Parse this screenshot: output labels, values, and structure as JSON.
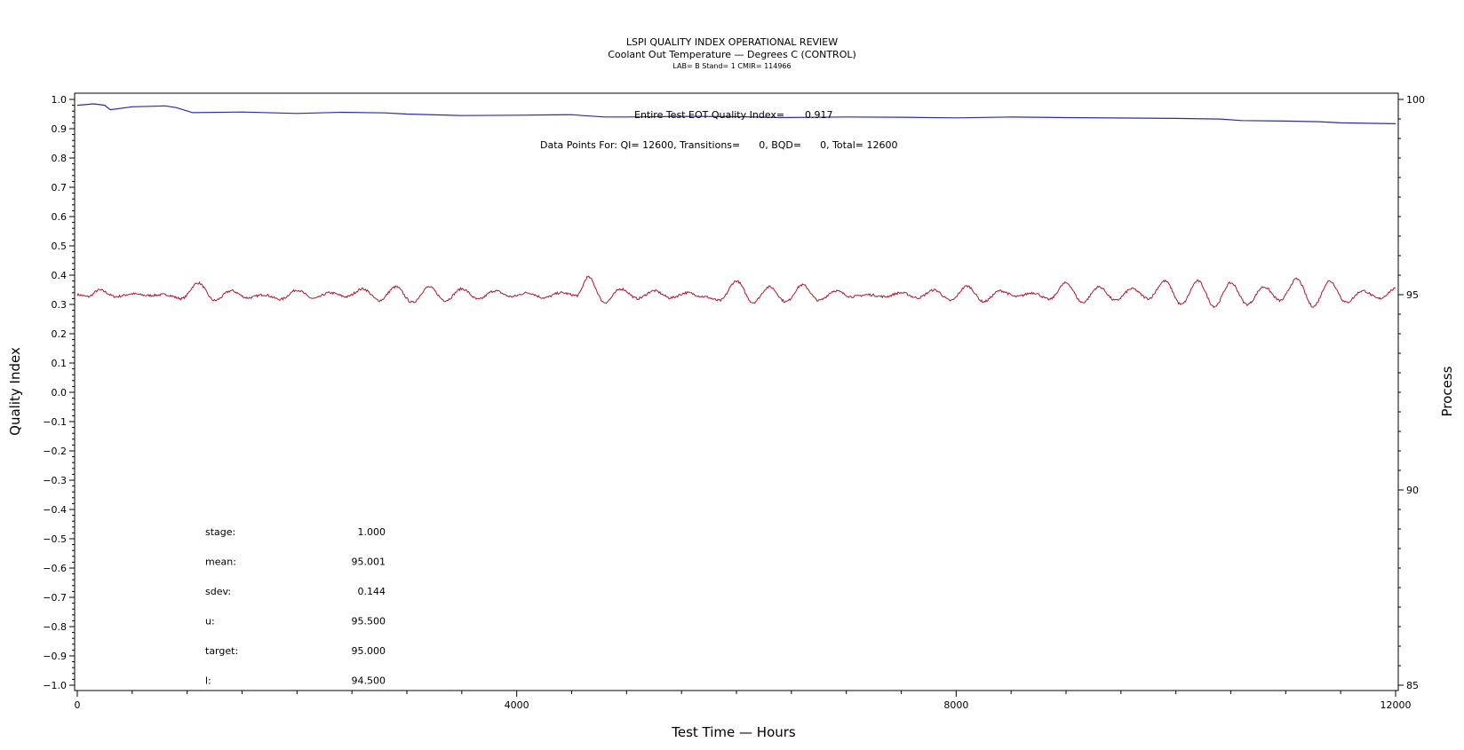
{
  "header": {
    "title": "LSPI QUALITY INDEX OPERATIONAL REVIEW",
    "subtitle": "Coolant Out Temperature — Degrees C (CONTROL)",
    "lab_line": "LAB= B Stand= 1 CMIR= 114966"
  },
  "annotations": {
    "eot_label": "Entire Test EOT Quality Index=",
    "eot_value": "0.917",
    "data_points": "Data Points For: QI= 12600, Transitions=      0, BQD=      0, Total= 12600"
  },
  "stats": [
    {
      "label": "stage:",
      "value": "1.000"
    },
    {
      "label": "mean:",
      "value": "95.001"
    },
    {
      "label": "sdev:",
      "value": "0.144"
    },
    {
      "label": "u:",
      "value": "95.500"
    },
    {
      "label": "target:",
      "value": "95.000"
    },
    {
      "label": "l:",
      "value": "94.500"
    }
  ],
  "colors": {
    "quality_index": "#2b2bb0",
    "process": "#b0152d",
    "axis": "#000000"
  },
  "chart_data": {
    "type": "line",
    "xlabel": "Test Time — Hours",
    "ylabel_left": "Quality Index",
    "ylabel_right": "Process",
    "xlim": [
      0,
      12000
    ],
    "ylim_left": [
      -1.0,
      1.0
    ],
    "ylim_right": [
      85,
      100
    ],
    "x_tick_labels": [
      "0",
      "4000",
      "8000",
      "12000"
    ],
    "y_left_tick_labels": [
      "1.0",
      "0.9",
      "0.8",
      "0.7",
      "0.6",
      "0.5",
      "0.4",
      "0.3",
      "0.2",
      "0.1",
      "0.0",
      "-0.1",
      "-0.2",
      "-0.3",
      "-0.4",
      "-0.5",
      "-0.6",
      "-0.7",
      "-0.8",
      "-0.9",
      "-1.0"
    ],
    "y_right_tick_labels": [
      "100",
      "95",
      "90",
      "85"
    ],
    "grid": false,
    "series": [
      {
        "axis": "left",
        "x": [
          0,
          150,
          250,
          300,
          500,
          800,
          900,
          1050,
          1500,
          2000,
          2400,
          2800,
          3000,
          3300,
          3500,
          4000,
          4500,
          4600,
          4800,
          5000,
          5600,
          6000,
          6300,
          6400,
          7000,
          7500,
          8000,
          8500,
          9000,
          10000,
          10400,
          10600,
          11000,
          11300,
          11500,
          12000
        ],
        "y": [
          0.98,
          0.985,
          0.98,
          0.965,
          0.975,
          0.978,
          0.972,
          0.955,
          0.957,
          0.952,
          0.956,
          0.954,
          0.95,
          0.947,
          0.945,
          0.946,
          0.948,
          0.945,
          0.94,
          0.94,
          0.942,
          0.941,
          0.939,
          0.938,
          0.94,
          0.939,
          0.937,
          0.94,
          0.938,
          0.935,
          0.933,
          0.928,
          0.926,
          0.924,
          0.92,
          0.917
        ]
      },
      {
        "axis": "right",
        "x": [
          0,
          100,
          200,
          350,
          500,
          650,
          800,
          950,
          1100,
          1250,
          1400,
          1550,
          1700,
          1850,
          2000,
          2150,
          2300,
          2450,
          2600,
          2750,
          2900,
          3050,
          3200,
          3350,
          3500,
          3650,
          3800,
          3950,
          4100,
          4250,
          4400,
          4550,
          4650,
          4800,
          4950,
          5100,
          5250,
          5400,
          5550,
          5700,
          5850,
          6000,
          6150,
          6300,
          6450,
          6600,
          6750,
          6900,
          7050,
          7200,
          7350,
          7500,
          7650,
          7800,
          7950,
          8100,
          8250,
          8400,
          8550,
          8700,
          8850,
          9000,
          9150,
          9300,
          9450,
          9600,
          9750,
          9900,
          10050,
          10200,
          10350,
          10500,
          10650,
          10800,
          10950,
          11100,
          11250,
          11400,
          11550,
          11700,
          11850,
          12000
        ],
        "y": [
          95.0,
          94.95,
          95.12,
          94.95,
          95.02,
          94.98,
          95.0,
          94.9,
          95.3,
          94.85,
          95.1,
          94.92,
          95.0,
          94.88,
          95.12,
          94.9,
          95.05,
          94.95,
          95.15,
          94.85,
          95.2,
          94.8,
          95.2,
          94.85,
          95.15,
          94.88,
          95.1,
          94.95,
          95.05,
          94.92,
          95.05,
          94.98,
          95.45,
          94.8,
          95.15,
          94.9,
          95.1,
          94.92,
          95.05,
          94.95,
          94.85,
          95.35,
          94.8,
          95.2,
          94.82,
          95.25,
          94.85,
          95.1,
          94.95,
          95.0,
          94.95,
          95.05,
          94.92,
          95.12,
          94.85,
          95.22,
          94.82,
          95.1,
          94.95,
          95.05,
          94.88,
          95.3,
          94.8,
          95.2,
          94.85,
          95.15,
          94.9,
          95.35,
          94.75,
          95.35,
          94.7,
          95.3,
          94.75,
          95.2,
          94.85,
          95.4,
          94.7,
          95.35,
          94.8,
          95.1,
          94.9,
          95.15
        ]
      }
    ]
  }
}
